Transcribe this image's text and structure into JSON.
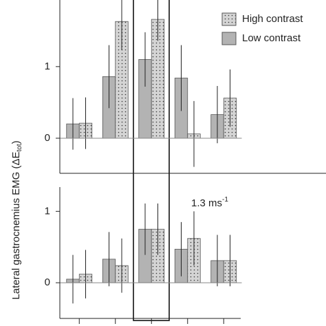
{
  "chart_data": [
    {
      "type": "bar",
      "categories": [
        null,
        null,
        null,
        null,
        null
      ],
      "series": [
        {
          "name": "Low contrast",
          "color": "#b3b3b3",
          "values": [
            0.2,
            0.86,
            1.1,
            0.84,
            0.33
          ],
          "errors": [
            0.36,
            0.44,
            0.38,
            0.46,
            0.4
          ]
        },
        {
          "name": "High contrast",
          "color": "#d4d4d4",
          "values": [
            0.21,
            1.63,
            1.66,
            0.06,
            0.56
          ],
          "errors": [
            0.36,
            0.4,
            0.3,
            0.46,
            0.4
          ]
        }
      ],
      "ylim": [
        -0.49,
        1.93
      ],
      "yticks": [
        0,
        1
      ],
      "legend": true
    },
    {
      "type": "bar",
      "categories": [
        null,
        null,
        null,
        null,
        null
      ],
      "series": [
        {
          "color": "#b3b3b3",
          "values": [
            0.05,
            0.33,
            0.75,
            0.47,
            0.31
          ],
          "errors": [
            0.34,
            0.38,
            0.36,
            0.38,
            0.36
          ]
        },
        {
          "color": "#d4d4d4",
          "values": [
            0.12,
            0.24,
            0.75,
            0.62,
            0.31
          ],
          "errors": [
            0.34,
            0.38,
            0.36,
            0.38,
            0.36
          ]
        }
      ],
      "ylim": [
        -0.5,
        1.34
      ],
      "yticks": [
        0,
        1
      ],
      "legend": false,
      "annotation": "1.3 ms",
      "annotation_sup": "-1",
      "ylabel": "Lateral gastrocnemius EMG (ΔE",
      "ylabel_sub": "tot",
      "ylabel_end": ")"
    }
  ]
}
